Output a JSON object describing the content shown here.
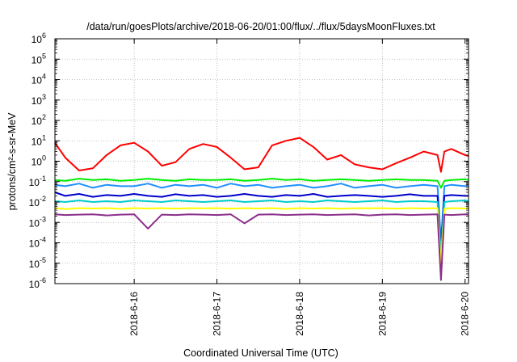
{
  "chart_data": {
    "type": "line",
    "title": "/data/run/goesPlots/archive/2018-06-20/01:00/flux/../flux/5daysMoonFluxes.txt",
    "xlabel": "Coordinated Universal Time (UTC)",
    "ylabel": "protons/cm²-s-sr-MeV",
    "y_scale": "log",
    "ylim": [
      1e-06,
      1000000.0
    ],
    "xlim": [
      "2018-06-15 01:00",
      "2018-06-20 01:00"
    ],
    "grid": true,
    "legend": "none",
    "y_ticks": [
      {
        "value": 1e-06,
        "base": "10",
        "exp": "-6"
      },
      {
        "value": 1e-05,
        "base": "10",
        "exp": "-5"
      },
      {
        "value": 0.0001,
        "base": "10",
        "exp": "-4"
      },
      {
        "value": 0.001,
        "base": "10",
        "exp": "-3"
      },
      {
        "value": 0.01,
        "base": "10",
        "exp": "-2"
      },
      {
        "value": 0.1,
        "base": "10",
        "exp": "-1"
      },
      {
        "value": 1.0,
        "base": "10",
        "exp": "0"
      },
      {
        "value": 10.0,
        "base": "10",
        "exp": "1"
      },
      {
        "value": 100.0,
        "base": "10",
        "exp": "2"
      },
      {
        "value": 1000.0,
        "base": "10",
        "exp": "3"
      },
      {
        "value": 10000.0,
        "base": "10",
        "exp": "4"
      },
      {
        "value": 100000.0,
        "base": "10",
        "exp": "5"
      },
      {
        "value": 1000000.0,
        "base": "10",
        "exp": "6"
      }
    ],
    "x_ticks": [
      {
        "label": "2018-6-16",
        "value": "2018-06-16 00:00"
      },
      {
        "label": "2018-6-17",
        "value": "2018-06-17 00:00"
      },
      {
        "label": "2018-6-18",
        "value": "2018-06-18 00:00"
      },
      {
        "label": "2018-6-19",
        "value": "2018-06-19 00:00"
      },
      {
        "label": "2018-6-20",
        "value": "2018-06-20 00:00"
      }
    ],
    "x": [
      "2018-06-15 01:00",
      "2018-06-15 04:00",
      "2018-06-15 08:00",
      "2018-06-15 12:00",
      "2018-06-15 16:00",
      "2018-06-15 20:00",
      "2018-06-16 00:00",
      "2018-06-16 04:00",
      "2018-06-16 08:00",
      "2018-06-16 12:00",
      "2018-06-16 16:00",
      "2018-06-16 20:00",
      "2018-06-17 00:00",
      "2018-06-17 04:00",
      "2018-06-17 08:00",
      "2018-06-17 12:00",
      "2018-06-17 16:00",
      "2018-06-17 20:00",
      "2018-06-18 00:00",
      "2018-06-18 04:00",
      "2018-06-18 08:00",
      "2018-06-18 12:00",
      "2018-06-18 16:00",
      "2018-06-18 20:00",
      "2018-06-19 00:00",
      "2018-06-19 04:00",
      "2018-06-19 08:00",
      "2018-06-19 12:00",
      "2018-06-19 16:00",
      "2018-06-19 17:00",
      "2018-06-19 18:00",
      "2018-06-19 20:00",
      "2018-06-20 00:00",
      "2018-06-20 01:00"
    ],
    "series": [
      {
        "color": "#ff0000",
        "values": [
          8,
          1.5,
          0.35,
          0.45,
          2,
          6,
          8,
          3,
          0.6,
          0.9,
          4,
          7,
          5,
          1.5,
          0.4,
          0.5,
          6,
          10,
          14,
          5,
          1.2,
          2,
          0.7,
          0.5,
          0.4,
          0.8,
          1.5,
          3,
          2,
          0.3,
          3,
          4,
          2,
          1.8
        ]
      },
      {
        "color": "#00ee00",
        "values": [
          0.12,
          0.11,
          0.14,
          0.12,
          0.13,
          0.11,
          0.12,
          0.14,
          0.12,
          0.11,
          0.13,
          0.12,
          0.12,
          0.13,
          0.11,
          0.12,
          0.14,
          0.12,
          0.13,
          0.11,
          0.12,
          0.13,
          0.12,
          0.11,
          0.12,
          0.13,
          0.12,
          0.12,
          0.11,
          0.05,
          0.11,
          0.12,
          0.13,
          0.12
        ]
      },
      {
        "color": "#1e90ff",
        "values": [
          0.07,
          0.06,
          0.08,
          0.05,
          0.07,
          0.06,
          0.06,
          0.08,
          0.05,
          0.07,
          0.06,
          0.07,
          0.05,
          0.08,
          0.06,
          0.07,
          0.05,
          0.06,
          0.07,
          0.05,
          0.06,
          0.08,
          0.05,
          0.06,
          0.07,
          0.05,
          0.06,
          0.07,
          0.06,
          0.0001,
          0.06,
          0.07,
          0.06,
          0.07
        ]
      },
      {
        "color": "#0000cd",
        "values": [
          0.03,
          0.02,
          0.025,
          0.018,
          0.022,
          0.02,
          0.025,
          0.02,
          0.018,
          0.024,
          0.02,
          0.022,
          0.018,
          0.02,
          0.025,
          0.02,
          0.018,
          0.022,
          0.02,
          0.025,
          0.018,
          0.02,
          0.022,
          0.02,
          0.018,
          0.02,
          0.024,
          0.02,
          0.02,
          5e-05,
          0.02,
          0.022,
          0.02,
          0.02
        ]
      },
      {
        "color": "#00cccc",
        "values": [
          0.011,
          0.01,
          0.012,
          0.01,
          0.011,
          0.01,
          0.012,
          0.011,
          0.01,
          0.012,
          0.011,
          0.01,
          0.011,
          0.012,
          0.01,
          0.011,
          0.012,
          0.01,
          0.011,
          0.01,
          0.012,
          0.011,
          0.01,
          0.011,
          0.012,
          0.01,
          0.011,
          0.011,
          0.01,
          3e-05,
          0.01,
          0.011,
          0.012,
          0.011
        ]
      },
      {
        "color": "#ffff00",
        "values": [
          0.005,
          0.0045,
          0.005,
          0.0048,
          0.005,
          0.0046,
          0.005,
          0.0048,
          0.005,
          0.0047,
          0.005,
          0.0049,
          0.005,
          0.0047,
          0.005,
          0.0048,
          0.005,
          0.0046,
          0.005,
          0.0048,
          0.005,
          0.0047,
          0.005,
          0.0049,
          0.005,
          0.0047,
          0.005,
          0.0048,
          0.005,
          8e-06,
          0.0046,
          0.005,
          0.0048,
          0.005
        ]
      },
      {
        "color": "#8b2f8b",
        "values": [
          0.0025,
          0.0023,
          0.0024,
          0.0025,
          0.0022,
          0.0024,
          0.0025,
          0.0005,
          0.0024,
          0.0023,
          0.0025,
          0.0024,
          0.0023,
          0.0025,
          0.0009,
          0.0024,
          0.0025,
          0.0023,
          0.0024,
          0.0025,
          0.0023,
          0.0024,
          0.0025,
          0.0022,
          0.0024,
          0.0025,
          0.0023,
          0.0024,
          0.0025,
          1.5e-06,
          0.0024,
          0.0023,
          0.0025,
          0.0024
        ]
      }
    ]
  }
}
